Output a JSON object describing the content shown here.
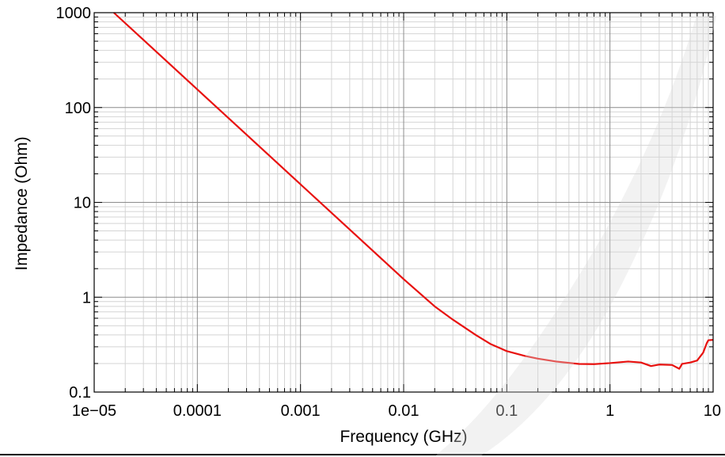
{
  "chart_data": {
    "type": "line",
    "xlabel": "Frequency (GHz)",
    "ylabel": "Impedance (Ohm)",
    "xscale": "log",
    "yscale": "log",
    "xlim": [
      1e-05,
      10
    ],
    "ylim": [
      0.1,
      1000
    ],
    "x_tick_labels": [
      "1e−05",
      "0.0001",
      "0.001",
      "0.01",
      "0.1",
      "1",
      "10"
    ],
    "y_tick_labels": [
      "0.1",
      "1",
      "10",
      "100",
      "1000"
    ],
    "grid": true,
    "legend": "none",
    "series": [
      {
        "color": "#e8110f",
        "points": [
          [
            1.55e-05,
            1000
          ],
          [
            3e-05,
            517
          ],
          [
            0.0001,
            155
          ],
          [
            0.0003,
            51.7
          ],
          [
            0.001,
            15.5
          ],
          [
            0.003,
            5.17
          ],
          [
            0.01,
            1.55
          ],
          [
            0.02,
            0.8
          ],
          [
            0.03,
            0.58
          ],
          [
            0.05,
            0.4
          ],
          [
            0.07,
            0.32
          ],
          [
            0.1,
            0.27
          ],
          [
            0.15,
            0.24
          ],
          [
            0.2,
            0.225
          ],
          [
            0.3,
            0.21
          ],
          [
            0.5,
            0.198
          ],
          [
            0.7,
            0.197
          ],
          [
            1.0,
            0.202
          ],
          [
            1.5,
            0.21
          ],
          [
            2.0,
            0.205
          ],
          [
            2.5,
            0.188
          ],
          [
            3.0,
            0.195
          ],
          [
            4.0,
            0.193
          ],
          [
            4.7,
            0.176
          ],
          [
            5.0,
            0.198
          ],
          [
            6.0,
            0.205
          ],
          [
            7.0,
            0.215
          ],
          [
            8.0,
            0.26
          ],
          [
            8.7,
            0.33
          ],
          [
            9.0,
            0.352
          ],
          [
            10.0,
            0.355
          ]
        ]
      }
    ]
  }
}
